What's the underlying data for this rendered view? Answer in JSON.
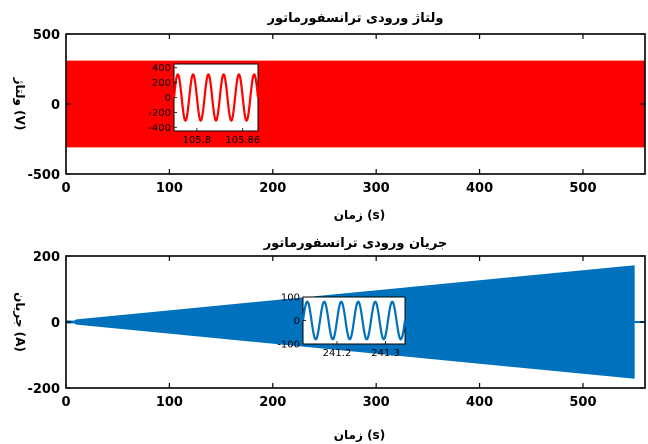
{
  "chart_data": [
    {
      "type": "area",
      "title": "ولتاژ ورودی ترانسفورماتور",
      "xlabel": "زمان (s)",
      "ylabel": "ولتاژ (V)",
      "xlim": [
        0,
        560
      ],
      "ylim": [
        -500,
        500
      ],
      "xticks": [
        0,
        100,
        200,
        300,
        400,
        500
      ],
      "yticks": [
        -500,
        0,
        500
      ],
      "grid": false,
      "color": "#ff0000",
      "series": [
        {
          "x": [
            0,
            560
          ],
          "upper": [
            310,
            310
          ],
          "lower": [
            -310,
            -310
          ]
        }
      ],
      "inset": {
        "type": "line",
        "xlim": [
          105.77,
          105.88
        ],
        "ylim": [
          -450,
          450
        ],
        "xticks": [
          105.8,
          105.86
        ],
        "xtick_labels": [
          "105.8",
          "105.86"
        ],
        "yticks": [
          400,
          200,
          0,
          -200,
          -400
        ],
        "amplitude": 310,
        "cycles": 5.5,
        "color": "#ff0000"
      }
    },
    {
      "type": "area",
      "title": "جریان ورودی ترانسفورماتور",
      "xlabel": "زمان (s)",
      "ylabel": "جریان (A)",
      "xlim": [
        0,
        560
      ],
      "ylim": [
        -200,
        200
      ],
      "xticks": [
        0,
        100,
        200,
        300,
        400,
        500
      ],
      "yticks": [
        -200,
        0,
        200
      ],
      "grid": false,
      "color": "#0072bd",
      "series": [
        {
          "x": [
            0,
            8,
            10,
            550
          ],
          "upper": [
            5,
            4,
            8,
            172
          ],
          "lower": [
            -5,
            -4,
            -8,
            -172
          ]
        }
      ],
      "tail": {
        "x": [
          550,
          560
        ],
        "upper": [
          3,
          3
        ],
        "lower": [
          -3,
          -3
        ]
      },
      "inset": {
        "type": "line",
        "xlim": [
          241.13,
          241.34
        ],
        "ylim": [
          -100,
          100
        ],
        "xticks": [
          241.2,
          241.3
        ],
        "xtick_labels": [
          "241.2",
          "241.3"
        ],
        "yticks": [
          100,
          0,
          -100
        ],
        "amplitude": 80,
        "cycles": 6,
        "color": "#0072bd"
      }
    }
  ]
}
